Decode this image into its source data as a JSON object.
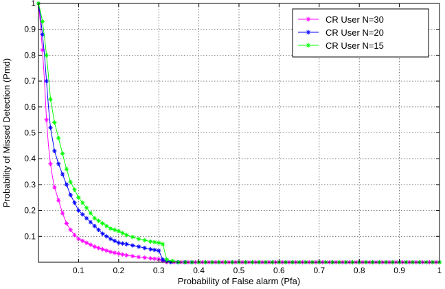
{
  "chart_data": {
    "type": "line",
    "title": "",
    "xlabel": "Probability of False alarm (Pfa)",
    "ylabel": "Probability of Missed Detection (Pmd)",
    "xlim": [
      0,
      1
    ],
    "ylim": [
      0,
      1
    ],
    "xticks": [
      0.1,
      0.2,
      0.3,
      0.4,
      0.5,
      0.6,
      0.7,
      0.8,
      0.9,
      1
    ],
    "xtick_labels": [
      "0.1",
      "0.2",
      "0.3",
      "0.4",
      "0.5",
      "0.6",
      "0.7",
      "0.8",
      "0.9",
      "1"
    ],
    "yticks": [
      0.1,
      0.2,
      0.3,
      0.4,
      0.5,
      0.6,
      0.7,
      0.8,
      0.9,
      1
    ],
    "ytick_labels": [
      "0.1",
      "0.2",
      "0.3",
      "0.4",
      "0.5",
      "0.6",
      "0.7",
      "0.8",
      "0.9",
      "1"
    ],
    "grid": "dotted",
    "legend_position": "top-right",
    "series": [
      {
        "name": "CR User N=30",
        "color": "#ff00ff",
        "marker": "star",
        "x": [
          0,
          0.005,
          0.01,
          0.015,
          0.02,
          0.025,
          0.03,
          0.035,
          0.04,
          0.05,
          0.06,
          0.07,
          0.08,
          0.09,
          0.1,
          0.12,
          0.14,
          0.16,
          0.18,
          0.2,
          0.22,
          0.25,
          0.28,
          0.3,
          0.31,
          0.32,
          0.4,
          0.5,
          0.6,
          0.7,
          0.8,
          0.9,
          1.0
        ],
        "y": [
          1.0,
          0.92,
          0.82,
          0.7,
          0.55,
          0.45,
          0.38,
          0.33,
          0.29,
          0.24,
          0.19,
          0.15,
          0.125,
          0.105,
          0.09,
          0.075,
          0.06,
          0.05,
          0.04,
          0.033,
          0.027,
          0.02,
          0.015,
          0.012,
          0.005,
          0,
          0,
          0,
          0,
          0,
          0,
          0,
          0
        ]
      },
      {
        "name": "CR User N=20",
        "color": "#0000ff",
        "marker": "star",
        "x": [
          0,
          0.005,
          0.01,
          0.015,
          0.02,
          0.025,
          0.03,
          0.04,
          0.05,
          0.06,
          0.07,
          0.08,
          0.09,
          0.1,
          0.12,
          0.14,
          0.16,
          0.18,
          0.2,
          0.22,
          0.25,
          0.28,
          0.3,
          0.31,
          0.33,
          0.4,
          0.5,
          0.6,
          0.7,
          0.8,
          0.9,
          1.0
        ],
        "y": [
          1.0,
          0.95,
          0.88,
          0.8,
          0.7,
          0.6,
          0.52,
          0.43,
          0.38,
          0.34,
          0.3,
          0.26,
          0.23,
          0.2,
          0.17,
          0.14,
          0.11,
          0.09,
          0.075,
          0.07,
          0.06,
          0.05,
          0.045,
          0.01,
          0,
          0,
          0,
          0,
          0,
          0,
          0,
          0
        ]
      },
      {
        "name": "CR User N=15",
        "color": "#00ff00",
        "marker": "star",
        "x": [
          0,
          0.005,
          0.01,
          0.015,
          0.02,
          0.025,
          0.03,
          0.04,
          0.05,
          0.06,
          0.07,
          0.08,
          0.09,
          0.1,
          0.12,
          0.14,
          0.16,
          0.18,
          0.2,
          0.22,
          0.25,
          0.28,
          0.3,
          0.31,
          0.32,
          0.35,
          0.4,
          0.5,
          0.6,
          0.7,
          0.8,
          0.9,
          1.0
        ],
        "y": [
          1.0,
          0.97,
          0.93,
          0.87,
          0.8,
          0.72,
          0.63,
          0.54,
          0.48,
          0.42,
          0.36,
          0.31,
          0.28,
          0.25,
          0.21,
          0.17,
          0.15,
          0.13,
          0.12,
          0.105,
          0.09,
          0.08,
          0.075,
          0.07,
          0.01,
          0,
          0,
          0,
          0,
          0,
          0,
          0,
          0
        ]
      }
    ]
  }
}
